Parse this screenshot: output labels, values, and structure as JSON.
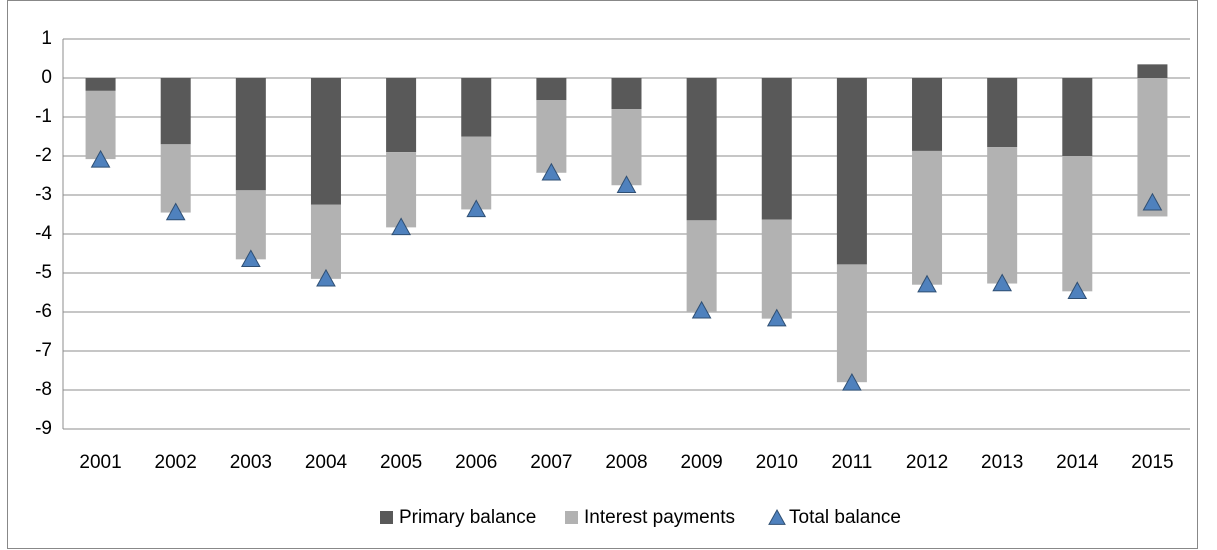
{
  "chart_data": {
    "type": "stacked-bar-marker",
    "categories": [
      "2001",
      "2002",
      "2003",
      "2004",
      "2005",
      "2006",
      "2007",
      "2008",
      "2009",
      "2010",
      "2011",
      "2012",
      "2013",
      "2014",
      "2015"
    ],
    "series": [
      {
        "name": "Primary balance",
        "color": "#595959",
        "kind": "bar",
        "values": [
          -0.33,
          -1.7,
          -2.88,
          -3.25,
          -1.9,
          -1.5,
          -0.57,
          -0.8,
          -3.65,
          -3.63,
          -4.78,
          -1.87,
          -1.77,
          -2.0,
          0.35
        ]
      },
      {
        "name": "Interest payments",
        "color": "#b2b2b2",
        "kind": "bar",
        "values": [
          -1.75,
          -1.75,
          -1.77,
          -1.9,
          -1.93,
          -1.87,
          -1.86,
          -1.95,
          -2.35,
          -2.54,
          -3.02,
          -3.43,
          -3.5,
          -3.47,
          -3.55
        ]
      },
      {
        "name": "Total balance",
        "color": "#4f81bd",
        "kind": "marker",
        "values": [
          -2.1,
          -3.45,
          -4.65,
          -5.15,
          -3.83,
          -3.37,
          -2.43,
          -2.75,
          -5.97,
          -6.17,
          -7.82,
          -5.3,
          -5.27,
          -5.47,
          -3.2
        ]
      }
    ],
    "ylim": [
      -9,
      1
    ],
    "yticks": [
      -9,
      -8,
      -7,
      -6,
      -5,
      -4,
      -3,
      -2,
      -1,
      0,
      1
    ],
    "grid": true,
    "legend": "bottom"
  }
}
